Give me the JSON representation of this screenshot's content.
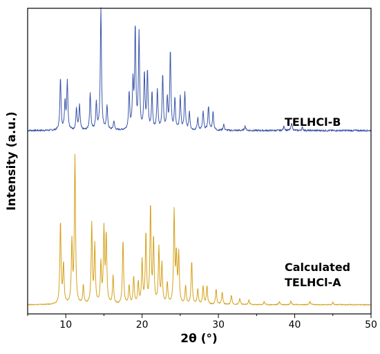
{
  "chart_data": {
    "type": "line",
    "title": "",
    "xlabel": "2θ (°)",
    "ylabel": "Intensity (a.u.)",
    "xlim": [
      5,
      50
    ],
    "ylim": [
      0,
      1
    ],
    "x_ticks": [
      10,
      20,
      30,
      40,
      50
    ],
    "y_ticks_shown": false,
    "grid": false,
    "legend": "inline labels at right of each trace",
    "series": [
      {
        "name": "TELHCl-B",
        "label_lines": [
          "TELHCl-B"
        ],
        "color": "#3a55a8",
        "baseline": 0.6,
        "noise": 0.003,
        "peaks": [
          [
            9.3,
            0.17
          ],
          [
            9.9,
            0.09
          ],
          [
            10.2,
            0.16
          ],
          [
            11.4,
            0.07
          ],
          [
            11.8,
            0.08
          ],
          [
            13.2,
            0.12
          ],
          [
            14.0,
            0.09
          ],
          [
            14.6,
            0.4
          ],
          [
            15.4,
            0.08
          ],
          [
            16.3,
            0.03
          ],
          [
            18.3,
            0.12
          ],
          [
            18.8,
            0.15
          ],
          [
            19.1,
            0.33
          ],
          [
            19.6,
            0.31
          ],
          [
            20.3,
            0.18
          ],
          [
            20.7,
            0.19
          ],
          [
            21.3,
            0.12
          ],
          [
            22.0,
            0.13
          ],
          [
            22.7,
            0.18
          ],
          [
            23.3,
            0.1
          ],
          [
            23.7,
            0.26
          ],
          [
            24.3,
            0.1
          ],
          [
            25.0,
            0.11
          ],
          [
            25.6,
            0.12
          ],
          [
            26.2,
            0.06
          ],
          [
            27.3,
            0.04
          ],
          [
            28.0,
            0.06
          ],
          [
            28.7,
            0.08
          ],
          [
            29.3,
            0.06
          ],
          [
            30.7,
            0.02
          ],
          [
            33.5,
            0.015
          ],
          [
            38.6,
            0.015
          ],
          [
            39.6,
            0.025
          ],
          [
            41.0,
            0.01
          ]
        ]
      },
      {
        "name": "Calculated TELHCl-A",
        "label_lines": [
          "Calculated",
          "TELHCl-A"
        ],
        "color": "#d4a017",
        "baseline": 0.03,
        "noise": 0.0015,
        "peaks": [
          [
            9.3,
            0.27
          ],
          [
            9.7,
            0.13
          ],
          [
            10.8,
            0.2
          ],
          [
            11.2,
            0.48
          ],
          [
            12.3,
            0.06
          ],
          [
            13.4,
            0.26
          ],
          [
            13.8,
            0.19
          ],
          [
            14.6,
            0.13
          ],
          [
            15.0,
            0.24
          ],
          [
            15.3,
            0.22
          ],
          [
            16.2,
            0.09
          ],
          [
            17.5,
            0.21
          ],
          [
            18.3,
            0.06
          ],
          [
            18.9,
            0.09
          ],
          [
            19.5,
            0.07
          ],
          [
            20.0,
            0.14
          ],
          [
            20.5,
            0.23
          ],
          [
            21.1,
            0.32
          ],
          [
            21.5,
            0.21
          ],
          [
            22.2,
            0.18
          ],
          [
            22.6,
            0.13
          ],
          [
            23.3,
            0.07
          ],
          [
            24.2,
            0.3
          ],
          [
            24.5,
            0.15
          ],
          [
            24.8,
            0.16
          ],
          [
            25.7,
            0.06
          ],
          [
            26.5,
            0.14
          ],
          [
            27.3,
            0.05
          ],
          [
            28.0,
            0.06
          ],
          [
            28.5,
            0.06
          ],
          [
            29.7,
            0.05
          ],
          [
            30.5,
            0.04
          ],
          [
            31.7,
            0.03
          ],
          [
            32.8,
            0.02
          ],
          [
            34.0,
            0.015
          ],
          [
            36.0,
            0.01
          ],
          [
            38.0,
            0.01
          ],
          [
            39.5,
            0.012
          ],
          [
            42.0,
            0.01
          ],
          [
            45.0,
            0.008
          ]
        ]
      }
    ]
  }
}
